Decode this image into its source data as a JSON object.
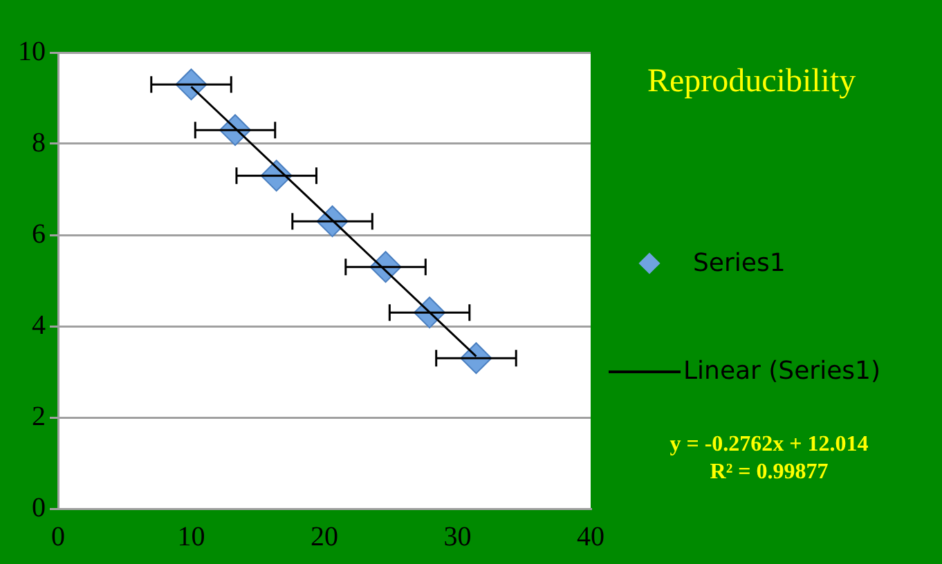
{
  "chart_data": {
    "type": "scatter",
    "title": "Reproducibility",
    "xlim": [
      0,
      40
    ],
    "xticks": [
      0,
      10,
      20,
      30,
      40
    ],
    "ylim": [
      0,
      10
    ],
    "yticks": [
      0,
      2,
      4,
      6,
      8,
      10
    ],
    "grid": "y",
    "legend": "right",
    "series": [
      {
        "name": "Series1",
        "marker": "diamond",
        "color": "#6fa3e0",
        "x": [
          10.0,
          13.3,
          16.4,
          20.6,
          24.6,
          27.9,
          31.4
        ],
        "values": [
          9.3,
          8.3,
          7.3,
          6.3,
          5.3,
          4.3,
          3.3
        ],
        "xerrors": [
          3,
          3,
          3,
          3,
          3,
          3,
          3
        ]
      },
      {
        "name": "Linear (Series1)",
        "type": "line",
        "color": "#000000",
        "x": [
          10.0,
          31.4
        ],
        "values": [
          9.25,
          3.34
        ],
        "marker": "none"
      }
    ],
    "annotations": [
      "y = -0.2762x + 12.014",
      "R² = 0.99877"
    ]
  }
}
